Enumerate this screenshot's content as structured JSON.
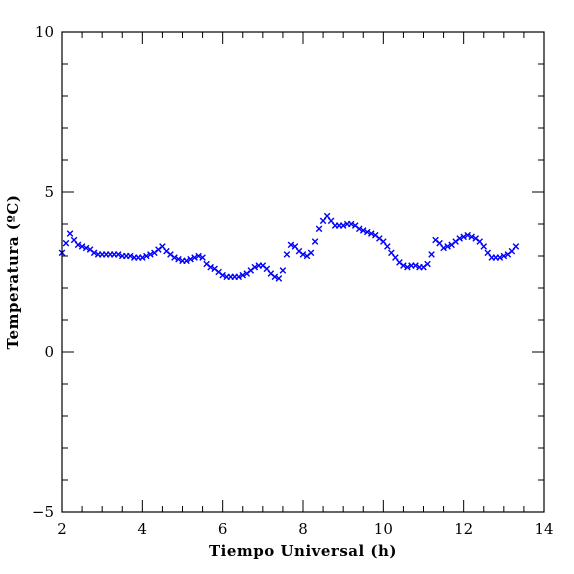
{
  "chart_data": {
    "type": "scatter",
    "title": "",
    "xlabel": "Tiempo Universal (h)",
    "ylabel": "Temperatura (ºC)",
    "xlim": [
      2,
      14
    ],
    "ylim": [
      -5,
      10
    ],
    "xticks": [
      2,
      4,
      6,
      8,
      10,
      12,
      14
    ],
    "yticks": [
      -5,
      0,
      5,
      10
    ],
    "xtick_labels": [
      "2",
      "4",
      "6",
      "8",
      "10",
      "12",
      "14"
    ],
    "ytick_labels": [
      "−5",
      "0",
      "5",
      "10"
    ],
    "grid": false,
    "marker": "x",
    "color": "#0000ff",
    "series": [
      {
        "x": [
          2.0,
          2.1,
          2.2,
          2.3,
          2.4,
          2.5,
          2.6,
          2.7,
          2.8,
          2.9,
          3.0,
          3.1,
          3.2,
          3.3,
          3.4,
          3.5,
          3.6,
          3.7,
          3.8,
          3.9,
          4.0,
          4.1,
          4.2,
          4.3,
          4.4,
          4.5,
          4.6,
          4.7,
          4.8,
          4.9,
          5.0,
          5.1,
          5.2,
          5.3,
          5.4,
          5.5,
          5.6,
          5.7,
          5.8,
          5.9,
          6.0,
          6.1,
          6.2,
          6.3,
          6.4,
          6.5,
          6.6,
          6.7,
          6.8,
          6.9,
          7.0,
          7.1,
          7.2,
          7.3,
          7.4,
          7.5,
          7.6,
          7.7,
          7.8,
          7.9,
          8.0,
          8.1,
          8.2,
          8.3,
          8.4,
          8.5,
          8.6,
          8.7,
          8.8,
          8.9,
          9.0,
          9.1,
          9.2,
          9.3,
          9.4,
          9.5,
          9.6,
          9.7,
          9.8,
          9.9,
          10.0,
          10.1,
          10.2,
          10.3,
          10.4,
          10.5,
          10.6,
          10.7,
          10.8,
          10.9,
          11.0,
          11.1,
          11.2,
          11.3,
          11.4,
          11.5,
          11.6,
          11.7,
          11.8,
          11.9,
          12.0,
          12.1,
          12.2,
          12.3,
          12.4,
          12.5,
          12.6,
          12.7,
          12.8,
          12.9,
          13.0,
          13.1,
          13.2,
          13.3
        ],
        "y": [
          3.1,
          3.4,
          3.7,
          3.5,
          3.35,
          3.3,
          3.25,
          3.2,
          3.1,
          3.05,
          3.05,
          3.05,
          3.05,
          3.05,
          3.05,
          3.0,
          3.0,
          3.0,
          2.95,
          2.95,
          2.95,
          3.0,
          3.05,
          3.1,
          3.2,
          3.3,
          3.15,
          3.05,
          2.95,
          2.9,
          2.85,
          2.85,
          2.9,
          2.95,
          3.0,
          2.95,
          2.75,
          2.65,
          2.6,
          2.5,
          2.4,
          2.35,
          2.35,
          2.35,
          2.35,
          2.4,
          2.45,
          2.55,
          2.65,
          2.7,
          2.7,
          2.6,
          2.45,
          2.35,
          2.3,
          2.55,
          3.05,
          3.35,
          3.3,
          3.15,
          3.05,
          3.0,
          3.1,
          3.45,
          3.85,
          4.1,
          4.25,
          4.1,
          3.95,
          3.95,
          3.95,
          4.0,
          4.0,
          3.95,
          3.85,
          3.8,
          3.75,
          3.7,
          3.65,
          3.55,
          3.45,
          3.3,
          3.1,
          2.95,
          2.8,
          2.7,
          2.65,
          2.7,
          2.7,
          2.65,
          2.65,
          2.75,
          3.05,
          3.5,
          3.4,
          3.25,
          3.3,
          3.35,
          3.45,
          3.55,
          3.6,
          3.65,
          3.6,
          3.55,
          3.45,
          3.3,
          3.1,
          2.95,
          2.95,
          2.95,
          3.0,
          3.05,
          3.15,
          3.3
        ]
      }
    ]
  }
}
